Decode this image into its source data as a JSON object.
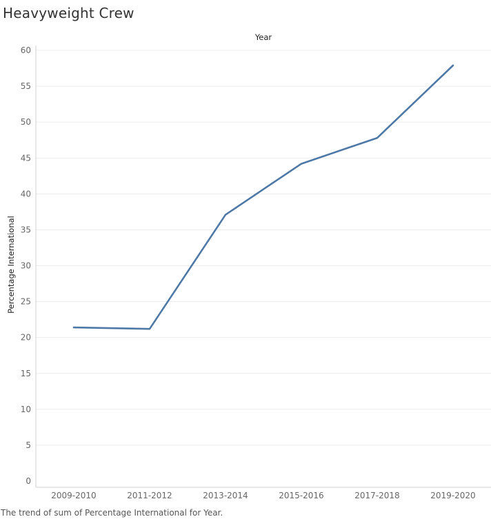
{
  "page": {
    "title": "Heavyweight Crew",
    "caption": "The trend of sum of Percentage International for Year."
  },
  "chart_data": {
    "type": "line",
    "title": "Heavyweight Crew",
    "xlabel": "Year",
    "ylabel": "Percentage International",
    "categories": [
      "2009-2010",
      "2011-2012",
      "2013-2014",
      "2015-2016",
      "2017-2018",
      "2019-2020"
    ],
    "series": [
      {
        "values": [
          21.4,
          21.2,
          37.1,
          44.2,
          47.8,
          57.9
        ]
      }
    ],
    "ylim": [
      0,
      60
    ],
    "yticks": [
      0,
      5,
      10,
      15,
      20,
      25,
      30,
      35,
      40,
      45,
      50,
      55,
      60
    ],
    "grid": true,
    "x_axis_position": "top-title",
    "colors": {
      "line": "#4e79a7",
      "grid": "#ececec",
      "axis": "#d0d0d0"
    }
  }
}
